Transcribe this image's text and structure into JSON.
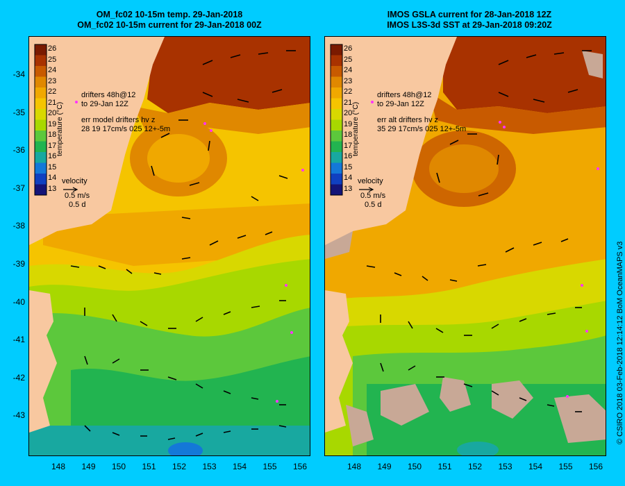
{
  "left_panel": {
    "title_line1": "OM_fc02 10-15m temp. 29-Jan-2018",
    "title_line2": "OM_fc02 10-15m current for 29-Jan-2018 00Z",
    "drifter_note_1": "drifters 48h@12",
    "drifter_note_2": "to 29-Jan 12Z",
    "err_note_1": "err model drifters hv z",
    "err_note_2": "28 19 17cm/s 025 12+-5m",
    "velocity_label": "velocity",
    "velocity_scale": "0.5 m/s",
    "velocity_time": "0.5 d",
    "colorbar_title": "temperature (°C)"
  },
  "right_panel": {
    "title_line1": "IMOS GSLA current for 28-Jan-2018 12Z",
    "title_line2": "IMOS L3S-3d SST at 29-Jan-2018 09:20Z",
    "drifter_note_1": "drifters 48h@12",
    "drifter_note_2": "to 29-Jan 12Z",
    "err_note_1": "err alt drifters hv z",
    "err_note_2": "35 29 17cm/s 025 12+-5m",
    "velocity_label": "velocity",
    "velocity_scale": "0.5 m/s",
    "velocity_time": "0.5 d",
    "colorbar_title": "temperature (°C)"
  },
  "credit": "© CSIRO 2018   03-Feb-2018 12:14:12 BoM OceanMAPS v3",
  "axes": {
    "lat_ticks": [
      "-34",
      "-35",
      "-36",
      "-37",
      "-38",
      "-39",
      "-40",
      "-41",
      "-42",
      "-43"
    ],
    "lon_ticks": [
      "148",
      "149",
      "150",
      "151",
      "152",
      "153",
      "154",
      "155",
      "156"
    ]
  },
  "colorbar": {
    "ticks": [
      "26",
      "25",
      "24",
      "23",
      "22",
      "21",
      "20",
      "19",
      "18",
      "17",
      "16",
      "15",
      "14",
      "13"
    ],
    "colors": [
      "#7a1a00",
      "#a83200",
      "#c85a00",
      "#e08800",
      "#f0a800",
      "#f5c400",
      "#d8d800",
      "#a8d800",
      "#5cc83c",
      "#22b450",
      "#18a8a0",
      "#1478d8",
      "#1040c0",
      "#141478"
    ]
  },
  "colors": {
    "background": "#00ccff",
    "land": "#f8c8a0",
    "cloud_mask": "#c8a896",
    "drifter": "#ff33ff"
  }
}
